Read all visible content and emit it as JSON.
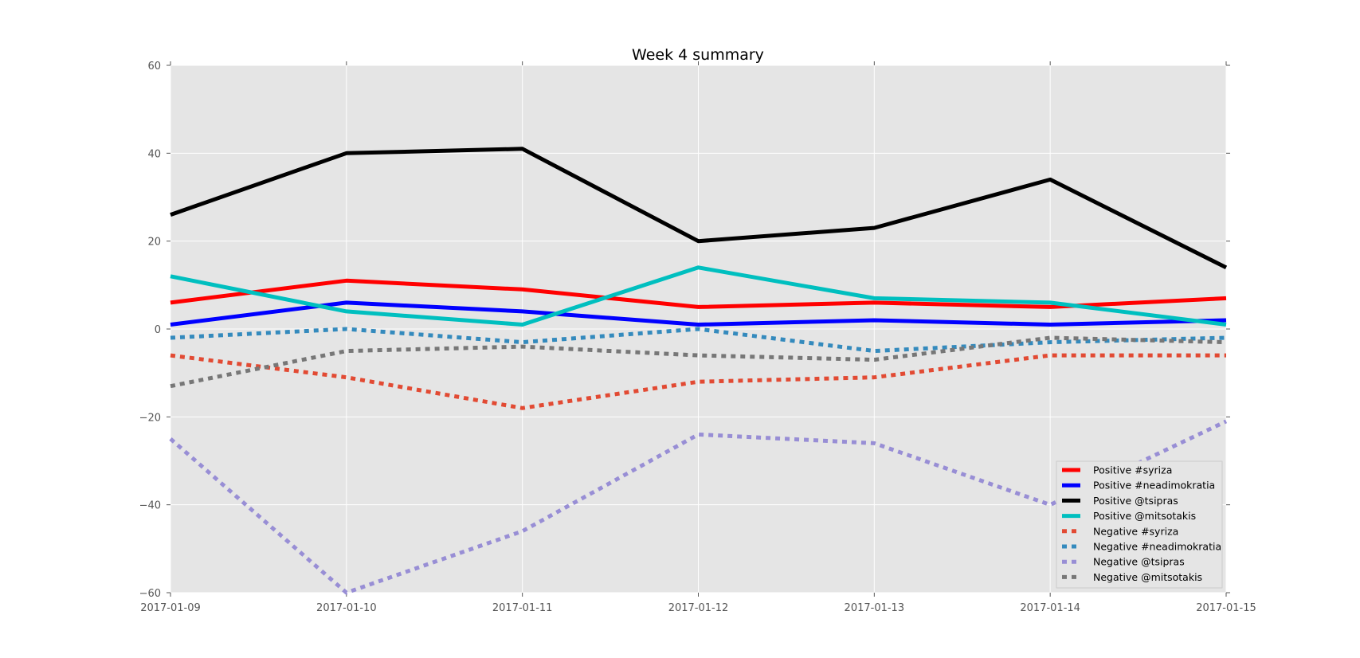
{
  "chart_data": {
    "type": "line",
    "title": "Week 4 summary",
    "xlabel": "",
    "ylabel": "",
    "x": [
      "2017-01-09",
      "2017-01-10",
      "2017-01-11",
      "2017-01-12",
      "2017-01-13",
      "2017-01-14",
      "2017-01-15"
    ],
    "ylim": [
      -60,
      60
    ],
    "yticks": [
      60,
      40,
      20,
      0,
      -20,
      -40,
      -60
    ],
    "ytick_labels": [
      "60",
      "40",
      "20",
      "0",
      "−20",
      "−40",
      "−60"
    ],
    "grid": true,
    "legend_position": "lower-right",
    "plot_background": "#e5e5e5",
    "series": [
      {
        "name": "Positive #syriza",
        "color": "#ff0000",
        "style": "solid",
        "values": [
          6,
          11,
          9,
          5,
          6,
          5,
          7
        ]
      },
      {
        "name": "Positive #neadimokratia",
        "color": "#0000ff",
        "style": "solid",
        "values": [
          1,
          6,
          4,
          1,
          2,
          1,
          2
        ]
      },
      {
        "name": "Positive @tsipras",
        "color": "#000000",
        "style": "solid",
        "values": [
          26,
          40,
          41,
          20,
          23,
          34,
          14
        ]
      },
      {
        "name": "Positive @mitsotakis",
        "color": "#00bfbf",
        "style": "solid",
        "values": [
          12,
          4,
          1,
          14,
          7,
          6,
          1
        ]
      },
      {
        "name": "Negative #syriza",
        "color": "#e24a33",
        "style": "dashed",
        "values": [
          -6,
          -11,
          -18,
          -12,
          -11,
          -6,
          -6
        ]
      },
      {
        "name": "Negative #neadimokratia",
        "color": "#348abd",
        "style": "dashed",
        "values": [
          -2,
          0,
          -3,
          0,
          -5,
          -3,
          -2
        ]
      },
      {
        "name": "Negative @tsipras",
        "color": "#988ed5",
        "style": "dashed",
        "values": [
          -25,
          -60,
          -46,
          -24,
          -26,
          -40,
          -21
        ]
      },
      {
        "name": "Negative @mitsotakis",
        "color": "#777777",
        "style": "dashed",
        "values": [
          -13,
          -5,
          -4,
          -6,
          -7,
          -2,
          -3
        ]
      }
    ]
  }
}
